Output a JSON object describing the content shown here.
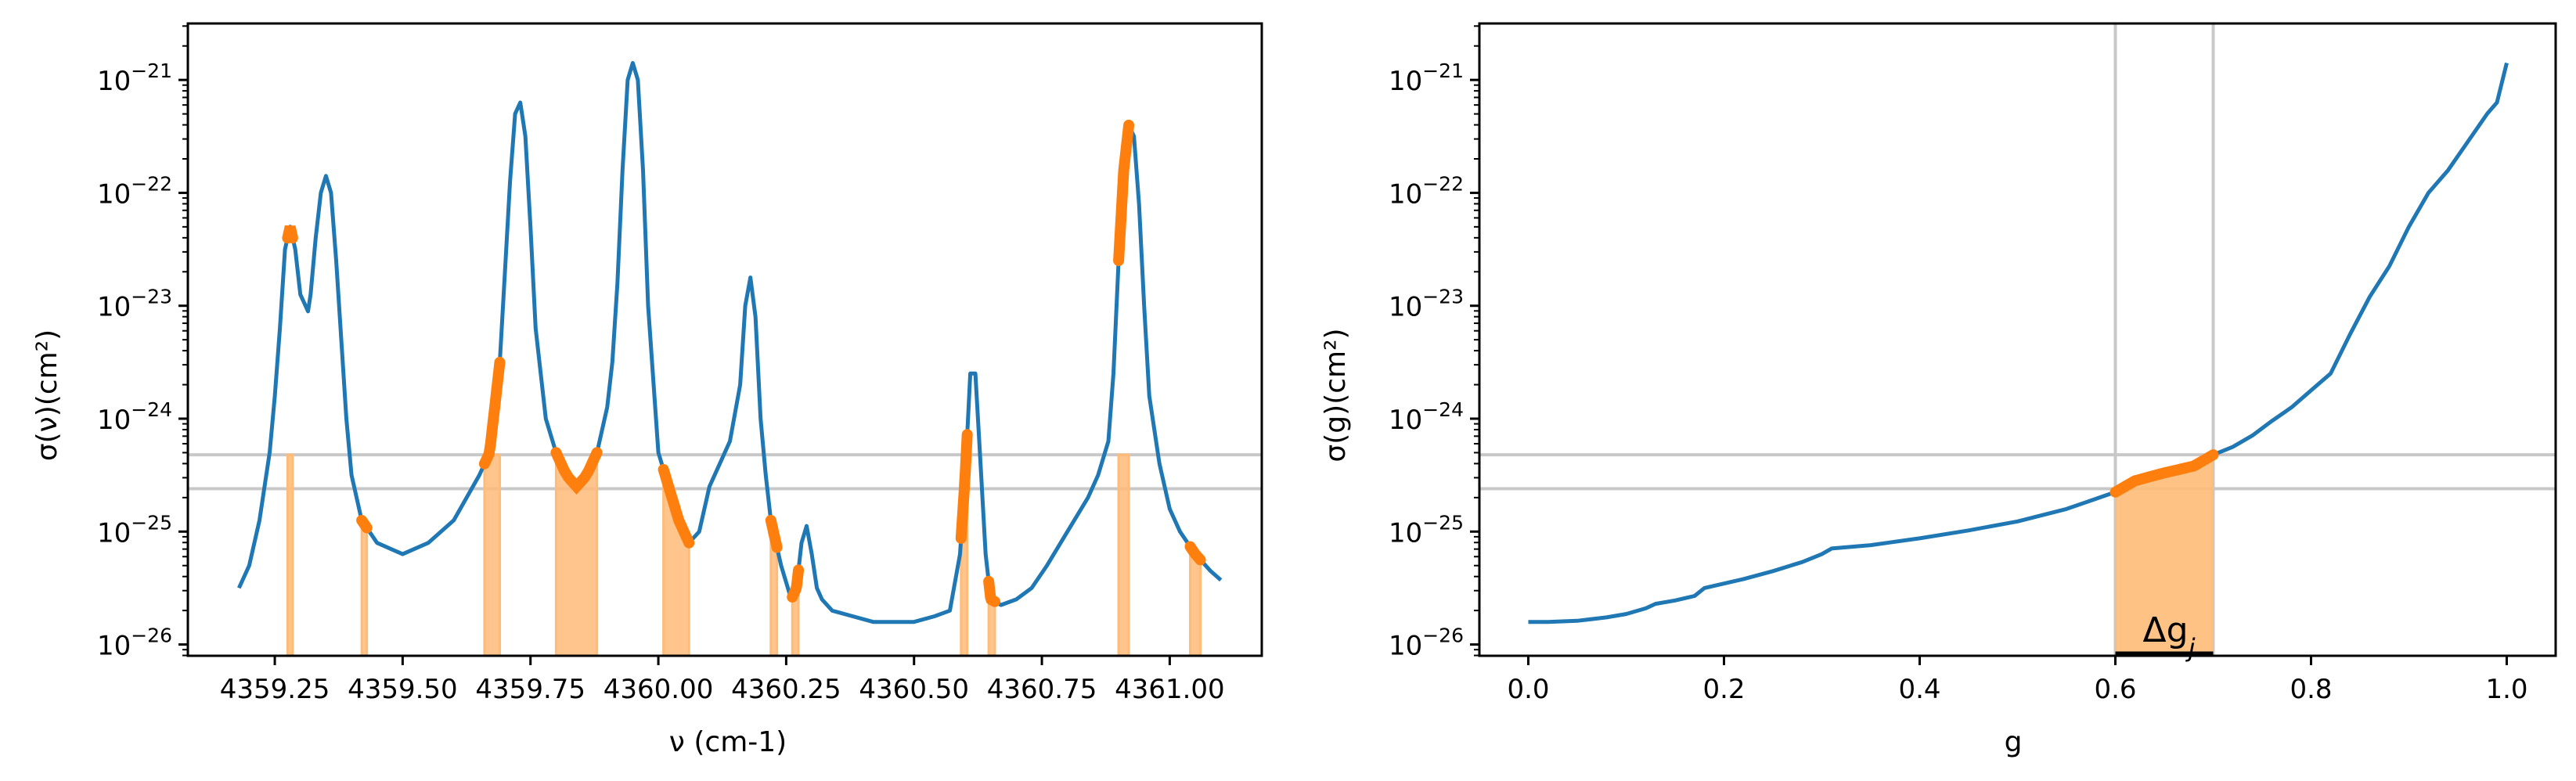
{
  "figure": {
    "colors": {
      "curve": "#1f77b4",
      "highlight": "#ff7f0e",
      "band": "#ffbb78",
      "guide": "#c8c8c8",
      "axes": "#000000"
    }
  },
  "chart_data": [
    {
      "type": "line",
      "id": "left",
      "xlabel": "ν (cm-1)",
      "ylabel": "σ(ν)(cm²)",
      "xlim": [
        4359.08,
        4361.18
      ],
      "ylim_log10": [
        -26.1,
        -20.5
      ],
      "yscale": "log",
      "xticks": [
        {
          "v": 4359.25,
          "label": "4359.25"
        },
        {
          "v": 4359.5,
          "label": "4359.50"
        },
        {
          "v": 4359.75,
          "label": "4359.75"
        },
        {
          "v": 4360.0,
          "label": "4360.00"
        },
        {
          "v": 4360.25,
          "label": "4360.25"
        },
        {
          "v": 4360.5,
          "label": "4360.50"
        },
        {
          "v": 4360.75,
          "label": "4360.75"
        },
        {
          "v": 4361.0,
          "label": "4361.00"
        }
      ],
      "yticks": [
        {
          "v": -26,
          "base": "10",
          "exp": "−26"
        },
        {
          "v": -25,
          "base": "10",
          "exp": "−25"
        },
        {
          "v": -24,
          "base": "10",
          "exp": "−24"
        },
        {
          "v": -23,
          "base": "10",
          "exp": "−23"
        },
        {
          "v": -22,
          "base": "10",
          "exp": "−22"
        },
        {
          "v": -21,
          "base": "10",
          "exp": "−21"
        }
      ],
      "hlines_log10": [
        -24.32,
        -24.62
      ],
      "series": [
        {
          "x": [
            4359.18,
            4359.2,
            4359.22,
            4359.24,
            4359.25,
            4359.26,
            4359.27,
            4359.28,
            4359.29,
            4359.3,
            4359.31,
            4359.315,
            4359.32,
            4359.33,
            4359.34,
            4359.35,
            4359.36,
            4359.37,
            4359.38,
            4359.39,
            4359.4,
            4359.42,
            4359.45,
            4359.5,
            4359.55,
            4359.6,
            4359.65,
            4359.67,
            4359.69,
            4359.7,
            4359.71,
            4359.72,
            4359.73,
            4359.74,
            4359.75,
            4359.76,
            4359.78,
            4359.8,
            4359.82,
            4359.84,
            4359.86,
            4359.88,
            4359.9,
            4359.91,
            4359.92,
            4359.93,
            4359.94,
            4359.95,
            4359.96,
            4359.97,
            4359.98,
            4360.0,
            4360.02,
            4360.04,
            4360.06,
            4360.08,
            4360.1,
            4360.12,
            4360.14,
            4360.16,
            4360.17,
            4360.18,
            4360.19,
            4360.2,
            4360.21,
            4360.22,
            4360.24,
            4360.26,
            4360.27,
            4360.28,
            4360.29,
            4360.3,
            4360.31,
            4360.32,
            4360.34,
            4360.38,
            4360.42,
            4360.46,
            4360.5,
            4360.54,
            4360.57,
            4360.59,
            4360.6,
            4360.61,
            4360.62,
            4360.63,
            4360.64,
            4360.65,
            4360.67,
            4360.7,
            4360.73,
            4360.76,
            4360.8,
            4360.84,
            4360.86,
            4360.88,
            4360.89,
            4360.9,
            4360.91,
            4360.92,
            4360.93,
            4360.94,
            4360.95,
            4360.96,
            4360.98,
            4361.0,
            4361.02,
            4361.05,
            4361.08,
            4361.1
          ],
          "y_log10": [
            -25.5,
            -25.3,
            -24.9,
            -24.3,
            -23.8,
            -23.2,
            -22.5,
            -22.3,
            -22.5,
            -22.9,
            -23.0,
            -23.05,
            -22.9,
            -22.4,
            -22.0,
            -21.85,
            -22.0,
            -22.6,
            -23.3,
            -24.0,
            -24.5,
            -24.9,
            -25.1,
            -25.2,
            -25.1,
            -24.9,
            -24.5,
            -24.3,
            -23.5,
            -22.7,
            -21.9,
            -21.3,
            -21.2,
            -21.5,
            -22.3,
            -23.2,
            -24.0,
            -24.3,
            -24.5,
            -24.6,
            -24.5,
            -24.3,
            -23.9,
            -23.5,
            -22.8,
            -21.8,
            -21.0,
            -20.85,
            -21.0,
            -21.8,
            -23.0,
            -24.3,
            -24.6,
            -24.9,
            -25.1,
            -25.0,
            -24.6,
            -24.4,
            -24.2,
            -23.7,
            -23.0,
            -22.75,
            -23.1,
            -24.0,
            -24.5,
            -24.9,
            -25.3,
            -25.6,
            -25.5,
            -25.1,
            -24.95,
            -25.2,
            -25.5,
            -25.6,
            -25.7,
            -25.75,
            -25.8,
            -25.8,
            -25.8,
            -25.75,
            -25.7,
            -25.2,
            -24.5,
            -23.6,
            -23.6,
            -24.4,
            -25.2,
            -25.6,
            -25.65,
            -25.6,
            -25.5,
            -25.3,
            -25.0,
            -24.7,
            -24.5,
            -24.2,
            -23.6,
            -22.6,
            -21.8,
            -21.4,
            -21.5,
            -22.1,
            -23.0,
            -23.8,
            -24.4,
            -24.8,
            -25.0,
            -25.2,
            -25.35,
            -25.43
          ]
        }
      ],
      "highlight_ranges": [
        [
          4359.275,
          4359.285
        ],
        [
          4359.42,
          4359.43
        ],
        [
          4359.66,
          4359.69
        ],
        [
          4359.8,
          4359.88
        ],
        [
          4360.01,
          4360.06
        ],
        [
          4360.22,
          4360.232
        ],
        [
          4360.262,
          4360.274
        ],
        [
          4360.592,
          4360.604
        ],
        [
          4360.646,
          4360.658
        ],
        [
          4360.9,
          4360.92
        ],
        [
          4361.04,
          4361.06
        ]
      ]
    },
    {
      "type": "line",
      "id": "right",
      "xlabel": "g",
      "ylabel": "σ(g)(cm²)",
      "xlim": [
        -0.05,
        1.05
      ],
      "ylim_log10": [
        -26.1,
        -20.5
      ],
      "yscale": "log",
      "xticks": [
        {
          "v": 0.0,
          "label": "0.0"
        },
        {
          "v": 0.2,
          "label": "0.2"
        },
        {
          "v": 0.4,
          "label": "0.4"
        },
        {
          "v": 0.6,
          "label": "0.6"
        },
        {
          "v": 0.8,
          "label": "0.8"
        },
        {
          "v": 1.0,
          "label": "1.0"
        }
      ],
      "yticks": [
        {
          "v": -26,
          "base": "10",
          "exp": "−26"
        },
        {
          "v": -25,
          "base": "10",
          "exp": "−25"
        },
        {
          "v": -24,
          "base": "10",
          "exp": "−24"
        },
        {
          "v": -23,
          "base": "10",
          "exp": "−23"
        },
        {
          "v": -22,
          "base": "10",
          "exp": "−22"
        },
        {
          "v": -21,
          "base": "10",
          "exp": "−21"
        }
      ],
      "hlines_log10": [
        -24.32,
        -24.62
      ],
      "vlines": [
        0.6,
        0.7
      ],
      "band": {
        "x0": 0.6,
        "x1": 0.7,
        "label_base": "Δg",
        "label_sub": "j"
      },
      "series": [
        {
          "x": [
            0.0,
            0.02,
            0.05,
            0.08,
            0.1,
            0.12,
            0.13,
            0.15,
            0.17,
            0.18,
            0.2,
            0.22,
            0.25,
            0.28,
            0.3,
            0.31,
            0.35,
            0.4,
            0.45,
            0.5,
            0.55,
            0.6,
            0.62,
            0.65,
            0.68,
            0.7,
            0.72,
            0.74,
            0.76,
            0.78,
            0.8,
            0.82,
            0.84,
            0.86,
            0.88,
            0.9,
            0.92,
            0.94,
            0.96,
            0.98,
            0.99,
            1.0
          ],
          "y_log10": [
            -25.8,
            -25.8,
            -25.79,
            -25.76,
            -25.73,
            -25.68,
            -25.64,
            -25.61,
            -25.57,
            -25.5,
            -25.46,
            -25.42,
            -25.35,
            -25.27,
            -25.2,
            -25.15,
            -25.12,
            -25.06,
            -24.99,
            -24.91,
            -24.8,
            -24.65,
            -24.55,
            -24.48,
            -24.42,
            -24.32,
            -24.25,
            -24.15,
            -24.02,
            -23.9,
            -23.75,
            -23.6,
            -23.25,
            -22.92,
            -22.65,
            -22.3,
            -22.0,
            -21.8,
            -21.55,
            -21.3,
            -21.2,
            -20.85
          ]
        }
      ],
      "highlight_x": [
        0.6,
        0.7
      ]
    }
  ]
}
